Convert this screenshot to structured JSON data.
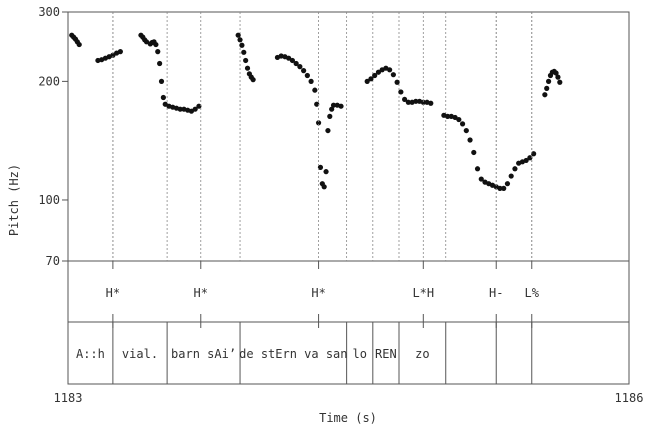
{
  "chart_data": {
    "type": "scatter",
    "xlabel": "Time (s)",
    "ylabel": "Pitch (Hz)",
    "x_tick_labels": [
      "1183",
      "1186"
    ],
    "xlim": [
      1183,
      1186
    ],
    "ylim": [
      70,
      300
    ],
    "y_scale": "log",
    "y_ticks": [
      70,
      100,
      200,
      300
    ],
    "grid": false,
    "boundaries": [
      1183.24,
      1183.53,
      1183.92,
      1184.49,
      1184.63,
      1184.77,
      1185.02,
      1185.29,
      1185.48
    ],
    "tones": [
      {
        "label": "H*",
        "t": 1183.24
      },
      {
        "label": "H*",
        "t": 1183.71
      },
      {
        "label": "H*",
        "t": 1184.34
      },
      {
        "label": "L*H",
        "t": 1184.9
      },
      {
        "label": "H-",
        "t": 1185.29
      },
      {
        "label": "L%",
        "t": 1185.48
      }
    ],
    "words": [
      "A::h",
      "vial.",
      "barn sAi’",
      "de stErn va san",
      "lo",
      "REN",
      "zo"
    ],
    "series": [
      {
        "points": [
          [
            1183.02,
            262
          ],
          [
            1183.03,
            259
          ],
          [
            1183.04,
            256
          ],
          [
            1183.05,
            252
          ],
          [
            1183.06,
            248
          ],
          [
            1183.16,
            226
          ],
          [
            1183.18,
            227
          ],
          [
            1183.2,
            229
          ],
          [
            1183.22,
            231
          ],
          [
            1183.24,
            233
          ],
          [
            1183.26,
            236
          ],
          [
            1183.28,
            238
          ]
        ]
      },
      {
        "points": [
          [
            1183.39,
            262
          ],
          [
            1183.4,
            259
          ],
          [
            1183.41,
            255
          ],
          [
            1183.42,
            252
          ],
          [
            1183.44,
            249
          ],
          [
            1183.45,
            251
          ],
          [
            1183.46,
            252
          ],
          [
            1183.47,
            248
          ],
          [
            1183.48,
            238
          ],
          [
            1183.49,
            222
          ],
          [
            1183.5,
            200
          ],
          [
            1183.51,
            182
          ],
          [
            1183.52,
            175
          ],
          [
            1183.54,
            173
          ],
          [
            1183.56,
            172
          ],
          [
            1183.58,
            171
          ],
          [
            1183.6,
            170
          ],
          [
            1183.62,
            170
          ],
          [
            1183.64,
            169
          ],
          [
            1183.66,
            168
          ],
          [
            1183.68,
            170
          ],
          [
            1183.7,
            173
          ]
        ]
      },
      {
        "points": [
          [
            1183.91,
            262
          ],
          [
            1183.92,
            255
          ],
          [
            1183.93,
            247
          ],
          [
            1183.94,
            237
          ],
          [
            1183.95,
            226
          ],
          [
            1183.96,
            216
          ],
          [
            1183.97,
            209
          ],
          [
            1183.98,
            205
          ],
          [
            1183.99,
            202
          ]
        ]
      },
      {
        "points": [
          [
            1184.12,
            230
          ],
          [
            1184.14,
            232
          ],
          [
            1184.16,
            231
          ],
          [
            1184.18,
            229
          ],
          [
            1184.2,
            226
          ],
          [
            1184.22,
            222
          ],
          [
            1184.24,
            218
          ],
          [
            1184.26,
            213
          ],
          [
            1184.28,
            207
          ],
          [
            1184.3,
            200
          ],
          [
            1184.32,
            190
          ],
          [
            1184.33,
            175
          ],
          [
            1184.34,
            157
          ],
          [
            1184.35,
            121
          ],
          [
            1184.36,
            110
          ],
          [
            1184.37,
            108
          ],
          [
            1184.38,
            118
          ],
          [
            1184.39,
            150
          ],
          [
            1184.4,
            163
          ],
          [
            1184.41,
            170
          ],
          [
            1184.42,
            174
          ],
          [
            1184.44,
            174
          ],
          [
            1184.46,
            173
          ]
        ]
      },
      {
        "points": [
          [
            1184.6,
            200
          ],
          [
            1184.62,
            203
          ],
          [
            1184.64,
            207
          ],
          [
            1184.66,
            211
          ],
          [
            1184.68,
            214
          ],
          [
            1184.7,
            216
          ],
          [
            1184.72,
            214
          ],
          [
            1184.74,
            208
          ],
          [
            1184.76,
            199
          ],
          [
            1184.78,
            188
          ],
          [
            1184.8,
            180
          ],
          [
            1184.82,
            177
          ],
          [
            1184.84,
            177
          ],
          [
            1184.86,
            178
          ],
          [
            1184.88,
            178
          ],
          [
            1184.9,
            177
          ],
          [
            1184.92,
            177
          ],
          [
            1184.94,
            176
          ]
        ]
      },
      {
        "points": [
          [
            1185.01,
            164
          ],
          [
            1185.03,
            163
          ],
          [
            1185.05,
            163
          ],
          [
            1185.07,
            162
          ],
          [
            1185.09,
            160
          ],
          [
            1185.11,
            156
          ],
          [
            1185.13,
            150
          ],
          [
            1185.15,
            142
          ],
          [
            1185.17,
            132
          ],
          [
            1185.19,
            120
          ],
          [
            1185.21,
            113
          ],
          [
            1185.23,
            111
          ],
          [
            1185.25,
            110
          ],
          [
            1185.27,
            109
          ],
          [
            1185.29,
            108
          ],
          [
            1185.31,
            107
          ],
          [
            1185.33,
            107
          ],
          [
            1185.35,
            110
          ],
          [
            1185.37,
            115
          ],
          [
            1185.39,
            120
          ],
          [
            1185.41,
            124
          ],
          [
            1185.43,
            125
          ],
          [
            1185.45,
            126
          ],
          [
            1185.47,
            128
          ],
          [
            1185.49,
            131
          ]
        ]
      },
      {
        "points": [
          [
            1185.55,
            185
          ],
          [
            1185.56,
            192
          ],
          [
            1185.57,
            200
          ],
          [
            1185.58,
            207
          ],
          [
            1185.59,
            211
          ],
          [
            1185.6,
            212
          ],
          [
            1185.61,
            210
          ],
          [
            1185.62,
            205
          ],
          [
            1185.63,
            199
          ]
        ]
      }
    ]
  }
}
